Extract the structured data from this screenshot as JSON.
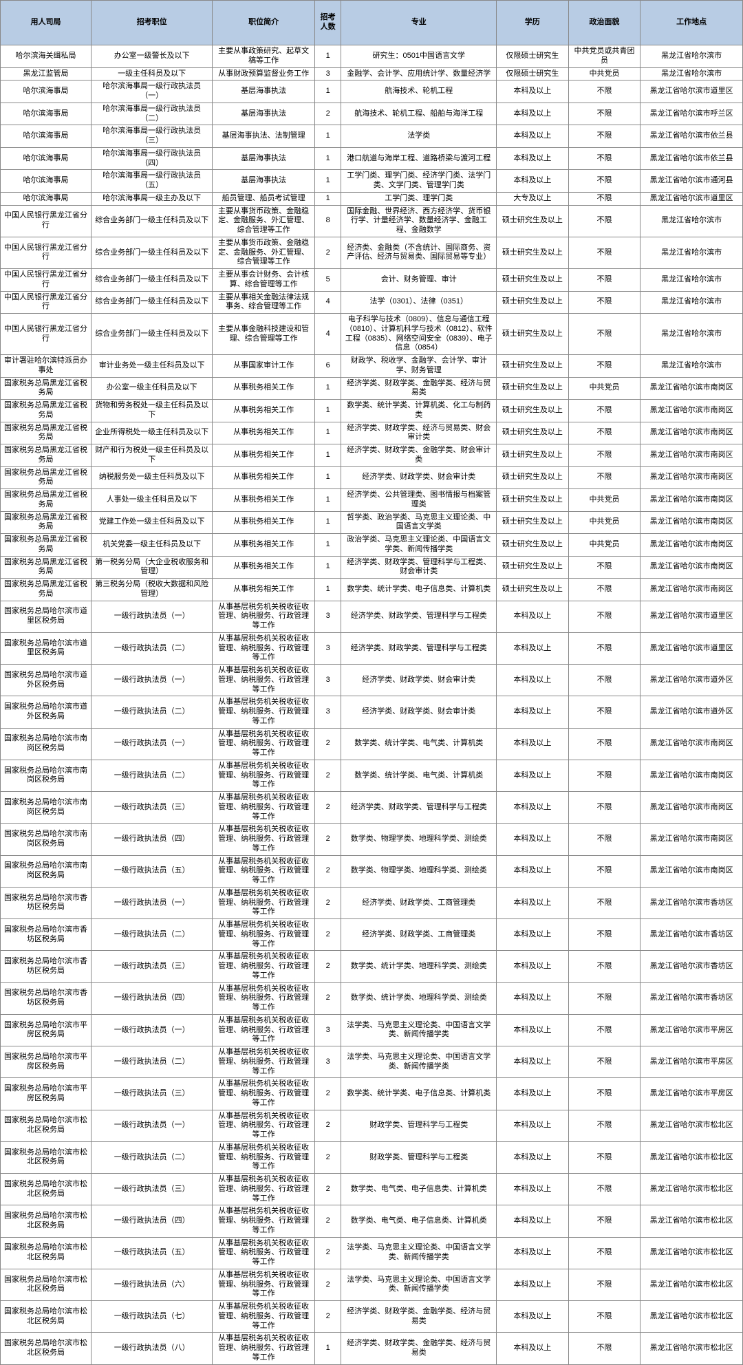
{
  "table": {
    "header_bg": "#b8cce4",
    "border_color": "#888888",
    "text_color": "#000000",
    "font_size_pt": 8,
    "columns": [
      "用人司局",
      "招考职位",
      "职位简介",
      "招考人数",
      "专业",
      "学历",
      "政治面貌",
      "工作地点"
    ],
    "rows": [
      [
        "哈尔滨海关缉私局",
        "办公室一级警长及以下",
        "主要从事政策研究、起草文稿等工作",
        "1",
        "研究生：0501中国语言文学",
        "仅限硕士研究生",
        "中共党员或共青团员",
        "黑龙江省哈尔滨市"
      ],
      [
        "黑龙江监管局",
        "一级主任科员及以下",
        "从事财政预算监督业务工作",
        "3",
        "金融学、会计学、应用统计学、数量经济学",
        "仅限硕士研究生",
        "中共党员",
        "黑龙江省哈尔滨市"
      ],
      [
        "哈尔滨海事局",
        "哈尔滨海事局一级行政执法员（一）",
        "基层海事执法",
        "1",
        "航海技术、轮机工程",
        "本科及以上",
        "不限",
        "黑龙江省哈尔滨市道里区"
      ],
      [
        "哈尔滨海事局",
        "哈尔滨海事局一级行政执法员（二）",
        "基层海事执法",
        "2",
        "航海技术、轮机工程、船舶与海洋工程",
        "本科及以上",
        "不限",
        "黑龙江省哈尔滨市呼兰区"
      ],
      [
        "哈尔滨海事局",
        "哈尔滨海事局一级行政执法员（三）",
        "基层海事执法、法制管理",
        "1",
        "法学类",
        "本科及以上",
        "不限",
        "黑龙江省哈尔滨市依兰县"
      ],
      [
        "哈尔滨海事局",
        "哈尔滨海事局一级行政执法员（四）",
        "基层海事执法",
        "1",
        "港口航道与海岸工程、道路桥梁与渡河工程",
        "本科及以上",
        "不限",
        "黑龙江省哈尔滨市依兰县"
      ],
      [
        "哈尔滨海事局",
        "哈尔滨海事局一级行政执法员（五）",
        "基层海事执法",
        "1",
        "工学门类、理学门类、经济学门类、法学门类、文学门类、管理学门类",
        "本科及以上",
        "不限",
        "黑龙江省哈尔滨市通河县"
      ],
      [
        "哈尔滨海事局",
        "哈尔滨海事局一级主办及以下",
        "船员管理、船员考试管理",
        "1",
        "工学门类、理学门类",
        "大专及以上",
        "不限",
        "黑龙江省哈尔滨市道里区"
      ],
      [
        "中国人民银行黑龙江省分行",
        "综合业务部门一级主任科员及以下",
        "主要从事货币政策、金融稳定、金融服务、外汇管理、综合管理等工作",
        "8",
        "国际金融、世界经济、西方经济学、货币银行学、计量经济学、数量经济学、金融工程、金融数学",
        "硕士研究生及以上",
        "不限",
        "黑龙江省哈尔滨市"
      ],
      [
        "中国人民银行黑龙江省分行",
        "综合业务部门一级主任科员及以下",
        "主要从事货币政策、金融稳定、金融服务、外汇管理、综合管理等工作",
        "2",
        "经济类、金融类（不含统计、国际商务、资产评估、经济与贸易类、国际贸易等专业）",
        "硕士研究生及以上",
        "不限",
        "黑龙江省哈尔滨市"
      ],
      [
        "中国人民银行黑龙江省分行",
        "综合业务部门一级主任科员及以下",
        "主要从事会计财务、会计核算、综合管理等工作",
        "5",
        "会计、财务管理、审计",
        "硕士研究生及以上",
        "不限",
        "黑龙江省哈尔滨市"
      ],
      [
        "中国人民银行黑龙江省分行",
        "综合业务部门一级主任科员及以下",
        "主要从事相关金融法律法规事务、综合管理等工作",
        "4",
        "法学（0301）、法律（0351）",
        "硕士研究生及以上",
        "不限",
        "黑龙江省哈尔滨市"
      ],
      [
        "中国人民银行黑龙江省分行",
        "综合业务部门一级主任科员及以下",
        "主要从事金融科技建设和管理、综合管理等工作",
        "4",
        "电子科学与技术（0809）、信息与通信工程（0810）、计算机科学与技术（0812）、软件工程（0835）、网络空间安全（0839）、电子信息（0854）",
        "硕士研究生及以上",
        "不限",
        "黑龙江省哈尔滨市"
      ],
      [
        "审计署驻哈尔滨特派员办事处",
        "审计业务处一级主任科员及以下",
        "从事国家审计工作",
        "6",
        "财政学、税收学、金融学、会计学、审计学、财务管理",
        "硕士研究生及以上",
        "不限",
        "黑龙江省哈尔滨市"
      ],
      [
        "国家税务总局黑龙江省税务局",
        "办公室一级主任科员及以下",
        "从事税务相关工作",
        "1",
        "经济学类、财政学类、金融学类、经济与贸易类",
        "硕士研究生及以上",
        "中共党员",
        "黑龙江省哈尔滨市南岗区"
      ],
      [
        "国家税务总局黑龙江省税务局",
        "货物和劳务税处一级主任科员及以下",
        "从事税务相关工作",
        "1",
        "数学类、统计学类、计算机类、化工与制药类",
        "硕士研究生及以上",
        "不限",
        "黑龙江省哈尔滨市南岗区"
      ],
      [
        "国家税务总局黑龙江省税务局",
        "企业所得税处一级主任科员及以下",
        "从事税务相关工作",
        "1",
        "经济学类、财政学类、经济与贸易类、财会审计类",
        "硕士研究生及以上",
        "不限",
        "黑龙江省哈尔滨市南岗区"
      ],
      [
        "国家税务总局黑龙江省税务局",
        "财产和行为税处一级主任科员及以下",
        "从事税务相关工作",
        "1",
        "经济学类、财政学类、金融学类、财会审计类",
        "硕士研究生及以上",
        "不限",
        "黑龙江省哈尔滨市南岗区"
      ],
      [
        "国家税务总局黑龙江省税务局",
        "纳税服务处一级主任科员及以下",
        "从事税务相关工作",
        "1",
        "经济学类、财政学类、财会审计类",
        "硕士研究生及以上",
        "不限",
        "黑龙江省哈尔滨市南岗区"
      ],
      [
        "国家税务总局黑龙江省税务局",
        "人事处一级主任科员及以下",
        "从事税务相关工作",
        "1",
        "经济学类、公共管理类、图书情报与档案管理类",
        "硕士研究生及以上",
        "中共党员",
        "黑龙江省哈尔滨市南岗区"
      ],
      [
        "国家税务总局黑龙江省税务局",
        "党建工作处一级主任科员及以下",
        "从事税务相关工作",
        "1",
        "哲学类、政治学类、马克思主义理论类、中国语言文学类",
        "硕士研究生及以上",
        "中共党员",
        "黑龙江省哈尔滨市南岗区"
      ],
      [
        "国家税务总局黑龙江省税务局",
        "机关党委一级主任科员及以下",
        "从事税务相关工作",
        "1",
        "政治学类、马克思主义理论类、中国语言文学类、新闻传播学类",
        "硕士研究生及以上",
        "中共党员",
        "黑龙江省哈尔滨市南岗区"
      ],
      [
        "国家税务总局黑龙江省税务局",
        "第一税务分局（大企业税收服务和管理）",
        "从事税务相关工作",
        "1",
        "经济学类、财政学类、管理科学与工程类、财会审计类",
        "硕士研究生及以上",
        "不限",
        "黑龙江省哈尔滨市南岗区"
      ],
      [
        "国家税务总局黑龙江省税务局",
        "第三税务分局（税收大数据和风险管理）",
        "从事税务相关工作",
        "1",
        "数学类、统计学类、电子信息类、计算机类",
        "硕士研究生及以上",
        "不限",
        "黑龙江省哈尔滨市南岗区"
      ],
      [
        "国家税务总局哈尔滨市道里区税务局",
        "一级行政执法员（一）",
        "从事基层税务机关税收征收管理、纳税服务、行政管理等工作",
        "3",
        "经济学类、财政学类、管理科学与工程类",
        "本科及以上",
        "不限",
        "黑龙江省哈尔滨市道里区"
      ],
      [
        "国家税务总局哈尔滨市道里区税务局",
        "一级行政执法员（二）",
        "从事基层税务机关税收征收管理、纳税服务、行政管理等工作",
        "3",
        "经济学类、财政学类、管理科学与工程类",
        "本科及以上",
        "不限",
        "黑龙江省哈尔滨市道里区"
      ],
      [
        "国家税务总局哈尔滨市道外区税务局",
        "一级行政执法员（一）",
        "从事基层税务机关税收征收管理、纳税服务、行政管理等工作",
        "3",
        "经济学类、财政学类、财会审计类",
        "本科及以上",
        "不限",
        "黑龙江省哈尔滨市道外区"
      ],
      [
        "国家税务总局哈尔滨市道外区税务局",
        "一级行政执法员（二）",
        "从事基层税务机关税收征收管理、纳税服务、行政管理等工作",
        "3",
        "经济学类、财政学类、财会审计类",
        "本科及以上",
        "不限",
        "黑龙江省哈尔滨市道外区"
      ],
      [
        "国家税务总局哈尔滨市南岗区税务局",
        "一级行政执法员（一）",
        "从事基层税务机关税收征收管理、纳税服务、行政管理等工作",
        "2",
        "数学类、统计学类、电气类、计算机类",
        "本科及以上",
        "不限",
        "黑龙江省哈尔滨市南岗区"
      ],
      [
        "国家税务总局哈尔滨市南岗区税务局",
        "一级行政执法员（二）",
        "从事基层税务机关税收征收管理、纳税服务、行政管理等工作",
        "2",
        "数学类、统计学类、电气类、计算机类",
        "本科及以上",
        "不限",
        "黑龙江省哈尔滨市南岗区"
      ],
      [
        "国家税务总局哈尔滨市南岗区税务局",
        "一级行政执法员（三）",
        "从事基层税务机关税收征收管理、纳税服务、行政管理等工作",
        "2",
        "经济学类、财政学类、管理科学与工程类",
        "本科及以上",
        "不限",
        "黑龙江省哈尔滨市南岗区"
      ],
      [
        "国家税务总局哈尔滨市南岗区税务局",
        "一级行政执法员（四）",
        "从事基层税务机关税收征收管理、纳税服务、行政管理等工作",
        "2",
        "数学类、物理学类、地理科学类、测绘类",
        "本科及以上",
        "不限",
        "黑龙江省哈尔滨市南岗区"
      ],
      [
        "国家税务总局哈尔滨市南岗区税务局",
        "一级行政执法员（五）",
        "从事基层税务机关税收征收管理、纳税服务、行政管理等工作",
        "2",
        "数学类、物理学类、地理科学类、测绘类",
        "本科及以上",
        "不限",
        "黑龙江省哈尔滨市南岗区"
      ],
      [
        "国家税务总局哈尔滨市香坊区税务局",
        "一级行政执法员（一）",
        "从事基层税务机关税收征收管理、纳税服务、行政管理等工作",
        "2",
        "经济学类、财政学类、工商管理类",
        "本科及以上",
        "不限",
        "黑龙江省哈尔滨市香坊区"
      ],
      [
        "国家税务总局哈尔滨市香坊区税务局",
        "一级行政执法员（二）",
        "从事基层税务机关税收征收管理、纳税服务、行政管理等工作",
        "2",
        "经济学类、财政学类、工商管理类",
        "本科及以上",
        "不限",
        "黑龙江省哈尔滨市香坊区"
      ],
      [
        "国家税务总局哈尔滨市香坊区税务局",
        "一级行政执法员（三）",
        "从事基层税务机关税收征收管理、纳税服务、行政管理等工作",
        "2",
        "数学类、统计学类、地理科学类、测绘类",
        "本科及以上",
        "不限",
        "黑龙江省哈尔滨市香坊区"
      ],
      [
        "国家税务总局哈尔滨市香坊区税务局",
        "一级行政执法员（四）",
        "从事基层税务机关税收征收管理、纳税服务、行政管理等工作",
        "2",
        "数学类、统计学类、地理科学类、测绘类",
        "本科及以上",
        "不限",
        "黑龙江省哈尔滨市香坊区"
      ],
      [
        "国家税务总局哈尔滨市平房区税务局",
        "一级行政执法员（一）",
        "从事基层税务机关税收征收管理、纳税服务、行政管理等工作",
        "3",
        "法学类、马克思主义理论类、中国语言文学类、新闻传播学类",
        "本科及以上",
        "不限",
        "黑龙江省哈尔滨市平房区"
      ],
      [
        "国家税务总局哈尔滨市平房区税务局",
        "一级行政执法员（二）",
        "从事基层税务机关税收征收管理、纳税服务、行政管理等工作",
        "3",
        "法学类、马克思主义理论类、中国语言文学类、新闻传播学类",
        "本科及以上",
        "不限",
        "黑龙江省哈尔滨市平房区"
      ],
      [
        "国家税务总局哈尔滨市平房区税务局",
        "一级行政执法员（三）",
        "从事基层税务机关税收征收管理、纳税服务、行政管理等工作",
        "2",
        "数学类、统计学类、电子信息类、计算机类",
        "本科及以上",
        "不限",
        "黑龙江省哈尔滨市平房区"
      ],
      [
        "国家税务总局哈尔滨市松北区税务局",
        "一级行政执法员（一）",
        "从事基层税务机关税收征收管理、纳税服务、行政管理等工作",
        "2",
        "财政学类、管理科学与工程类",
        "本科及以上",
        "不限",
        "黑龙江省哈尔滨市松北区"
      ],
      [
        "国家税务总局哈尔滨市松北区税务局",
        "一级行政执法员（二）",
        "从事基层税务机关税收征收管理、纳税服务、行政管理等工作",
        "2",
        "财政学类、管理科学与工程类",
        "本科及以上",
        "不限",
        "黑龙江省哈尔滨市松北区"
      ],
      [
        "国家税务总局哈尔滨市松北区税务局",
        "一级行政执法员（三）",
        "从事基层税务机关税收征收管理、纳税服务、行政管理等工作",
        "2",
        "数学类、电气类、电子信息类、计算机类",
        "本科及以上",
        "不限",
        "黑龙江省哈尔滨市松北区"
      ],
      [
        "国家税务总局哈尔滨市松北区税务局",
        "一级行政执法员（四）",
        "从事基层税务机关税收征收管理、纳税服务、行政管理等工作",
        "2",
        "数学类、电气类、电子信息类、计算机类",
        "本科及以上",
        "不限",
        "黑龙江省哈尔滨市松北区"
      ],
      [
        "国家税务总局哈尔滨市松北区税务局",
        "一级行政执法员（五）",
        "从事基层税务机关税收征收管理、纳税服务、行政管理等工作",
        "2",
        "法学类、马克思主义理论类、中国语言文学类、新闻传播学类",
        "本科及以上",
        "不限",
        "黑龙江省哈尔滨市松北区"
      ],
      [
        "国家税务总局哈尔滨市松北区税务局",
        "一级行政执法员（六）",
        "从事基层税务机关税收征收管理、纳税服务、行政管理等工作",
        "2",
        "法学类、马克思主义理论类、中国语言文学类、新闻传播学类",
        "本科及以上",
        "不限",
        "黑龙江省哈尔滨市松北区"
      ],
      [
        "国家税务总局哈尔滨市松北区税务局",
        "一级行政执法员（七）",
        "从事基层税务机关税收征收管理、纳税服务、行政管理等工作",
        "2",
        "经济学类、财政学类、金融学类、经济与贸易类",
        "本科及以上",
        "不限",
        "黑龙江省哈尔滨市松北区"
      ],
      [
        "国家税务总局哈尔滨市松北区税务局",
        "一级行政执法员（八）",
        "从事基层税务机关税收征收管理、纳税服务、行政管理等工作",
        "1",
        "经济学类、财政学类、金融学类、经济与贸易类",
        "本科及以上",
        "不限",
        "黑龙江省哈尔滨市松北区"
      ]
    ]
  }
}
